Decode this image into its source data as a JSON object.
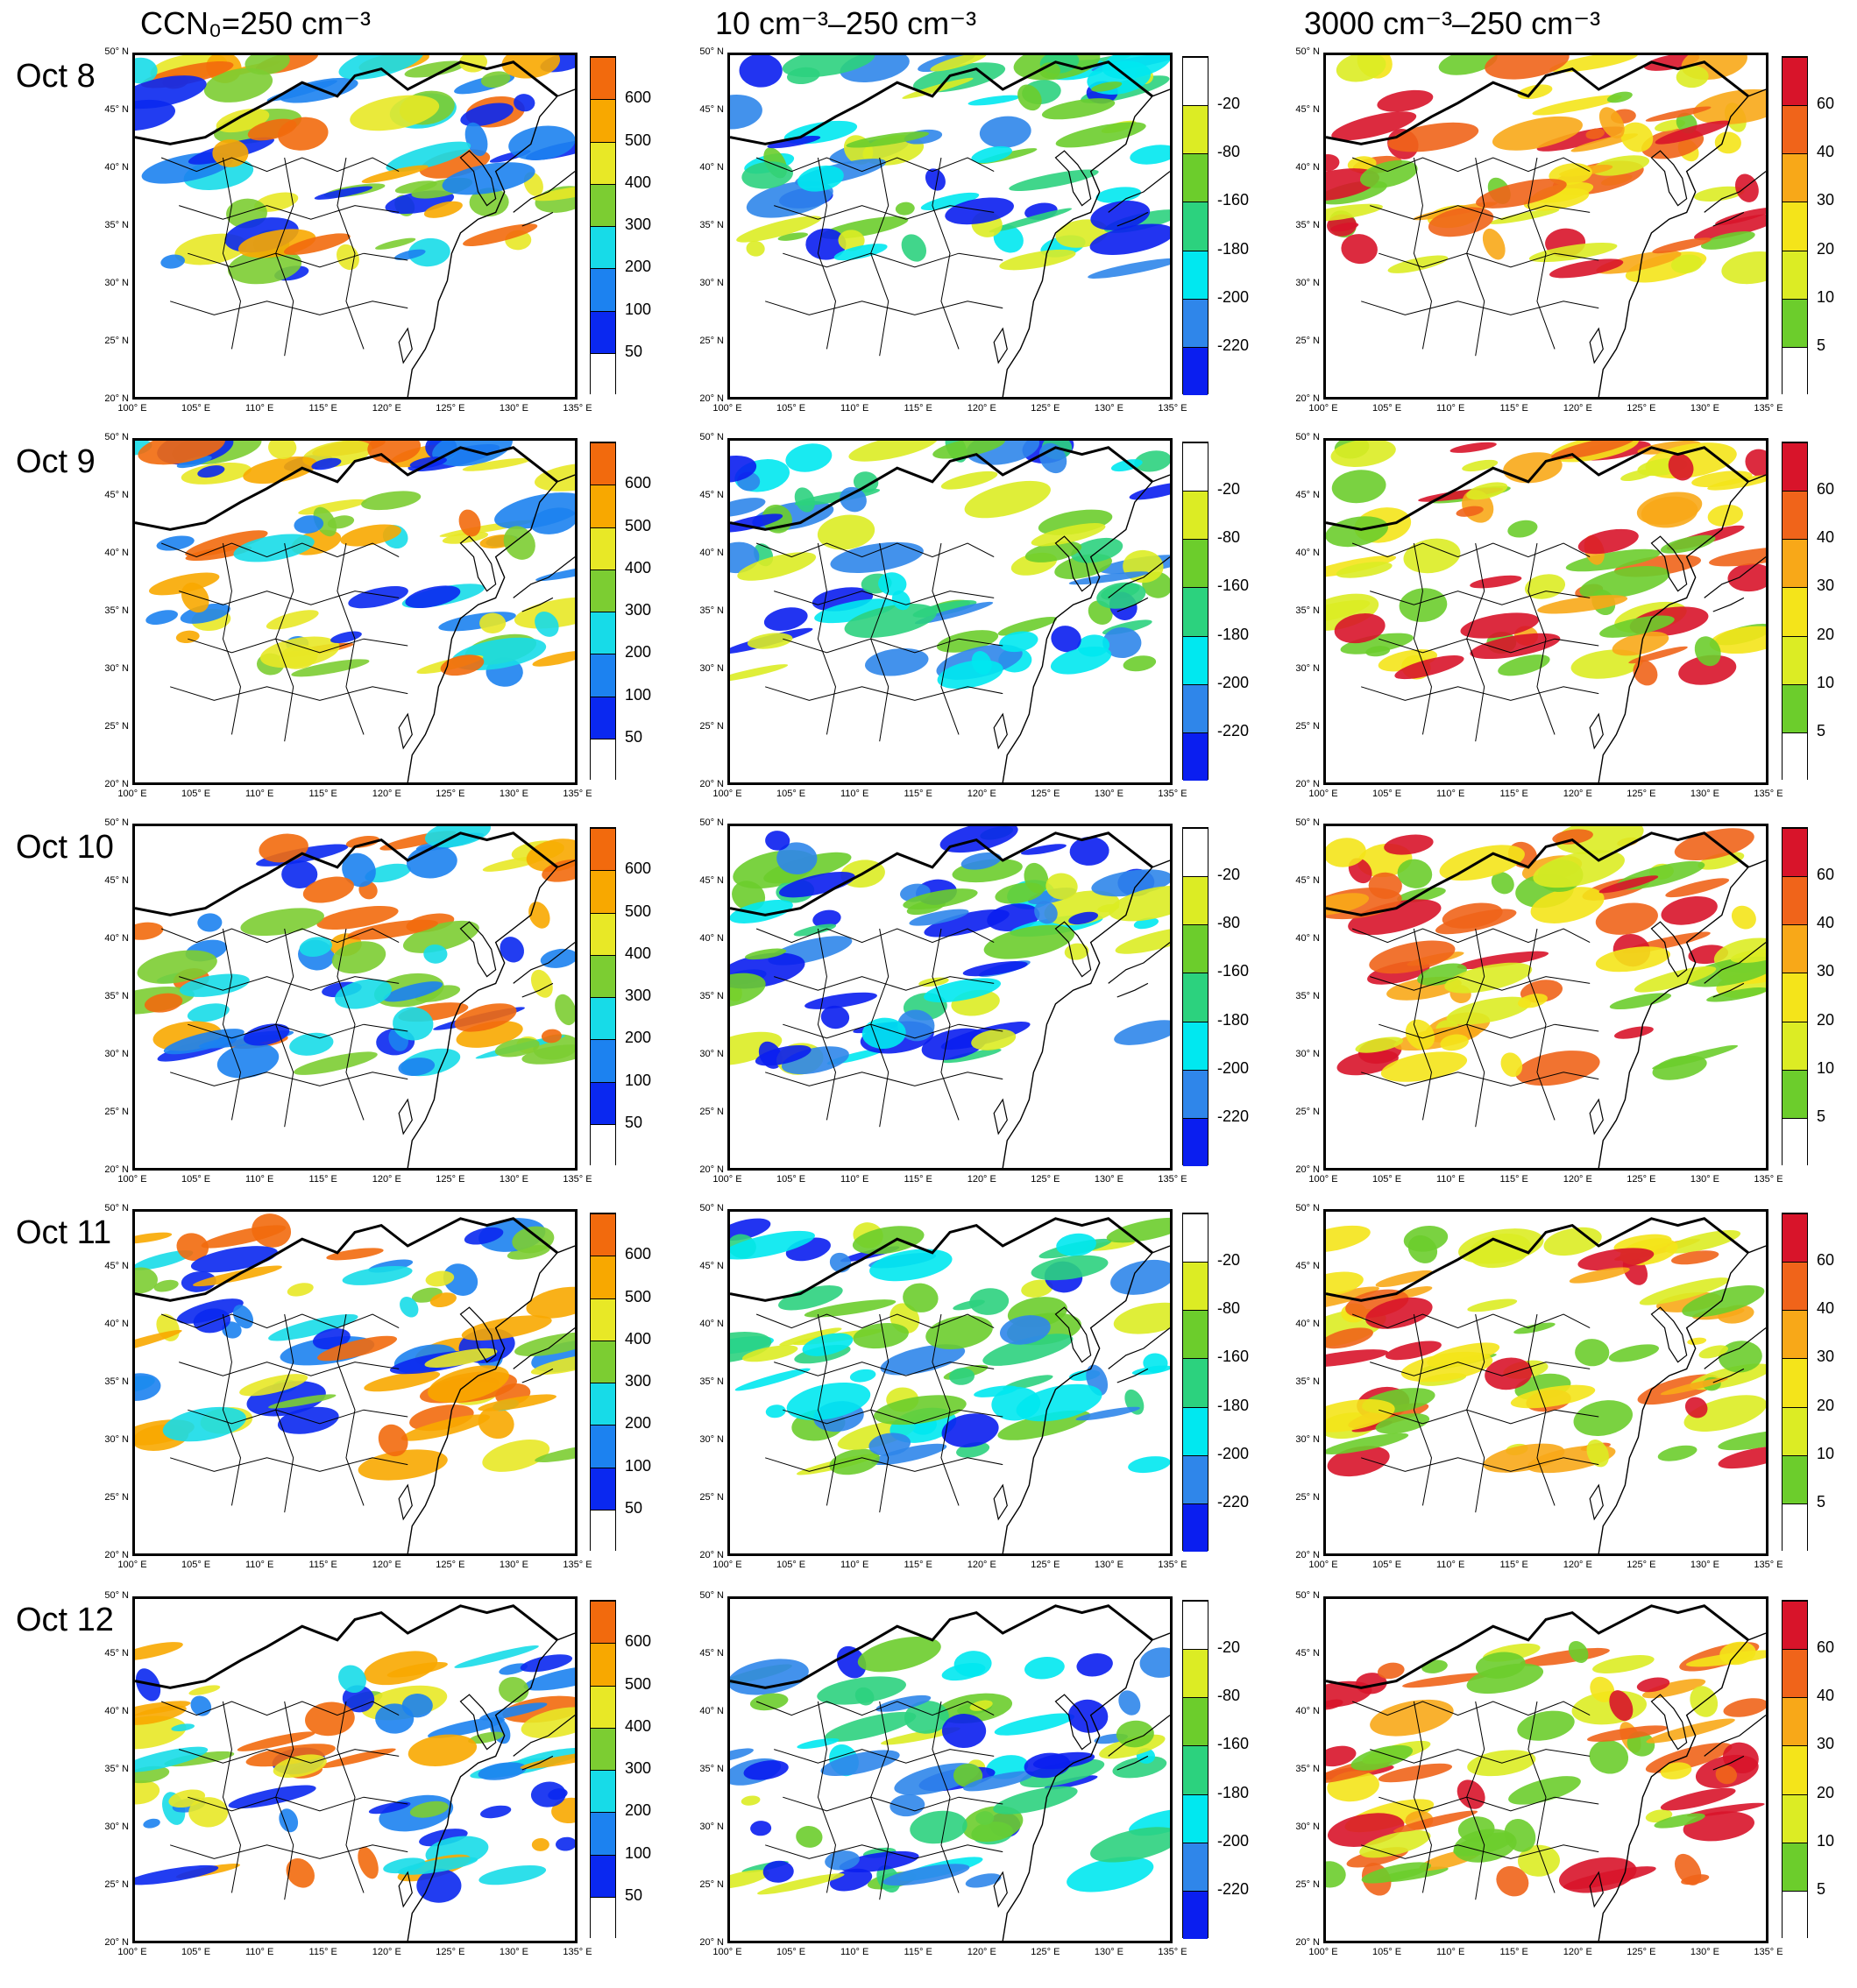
{
  "columns": [
    {
      "title": "CCN₀=250 cm⁻³",
      "scale": "ccn"
    },
    {
      "title": "10 cm⁻³–250 cm⁻³",
      "scale": "diff_low"
    },
    {
      "title": "3000 cm⁻³–250 cm⁻³",
      "scale": "diff_high"
    }
  ],
  "rows": [
    {
      "label": "Oct 8"
    },
    {
      "label": "Oct 9"
    },
    {
      "label": "Oct 10"
    },
    {
      "label": "Oct 11"
    },
    {
      "label": "Oct 12"
    }
  ],
  "axes": {
    "lat_ticks": [
      "50° N",
      "45° N",
      "40° N",
      "35° N",
      "30° N",
      "25° N",
      "20° N"
    ],
    "lon_ticks": [
      "100° E",
      "105° E",
      "110° E",
      "115° E",
      "120° E",
      "125° E",
      "130° E",
      "135° E"
    ],
    "lat_range": [
      20,
      50
    ],
    "lon_range": [
      100,
      135
    ]
  },
  "colorbars": {
    "ccn": {
      "labels": [
        "600",
        "500",
        "400",
        "300",
        "200",
        "100",
        "50"
      ],
      "colors": [
        "#f26a0d",
        "#f8a800",
        "#e8e826",
        "#7ccd32",
        "#17dbe8",
        "#1c82f0",
        "#0a28f0",
        "#ffffff"
      ]
    },
    "diff_low": {
      "labels": [
        "-20",
        "-80",
        "-160",
        "-180",
        "-200",
        "-220"
      ],
      "colors": [
        "#ffffff",
        "#dcec24",
        "#6ccd2c",
        "#2cd27e",
        "#00e8f0",
        "#2f86ea",
        "#0a1ef0"
      ]
    },
    "diff_high": {
      "labels": [
        "60",
        "40",
        "30",
        "20",
        "10",
        "5"
      ],
      "colors": [
        "#d8142a",
        "#f0641a",
        "#f8a818",
        "#f4e41a",
        "#dcec24",
        "#6ccd2c",
        "#ffffff"
      ]
    }
  }
}
